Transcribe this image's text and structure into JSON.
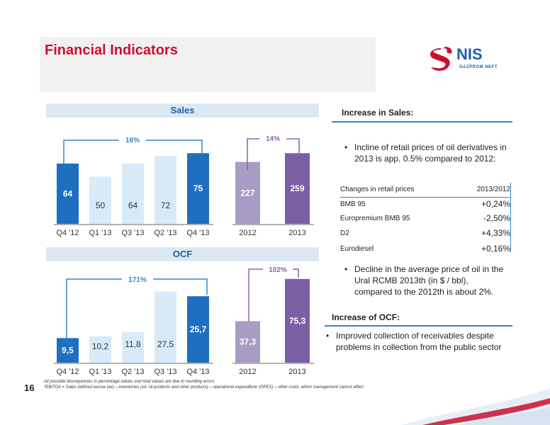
{
  "page": {
    "title": "Financial Indicators",
    "page_number": "16",
    "footnote_1": "All possible discrepancies in percentage values and total values are due to rounding errors",
    "footnote_2": "*EBITDA = Sales (without excise tax) – inventories (oil, oil products and other products) – operational expenditure (OPEX) – other costs, which management cannot affect"
  },
  "logo": {
    "text": "NIS",
    "subtext": "GAZPROM NEFT",
    "color": "#c8102e",
    "text_color": "#1f5fa8"
  },
  "colors": {
    "dark_blue": "#1f6fc0",
    "light_blue": "#d8eaf8",
    "purple_light": "#a99cc4",
    "purple_dark": "#7b5fa4",
    "accent_red": "#c8102e"
  },
  "sales": {
    "header": "Sales",
    "growth_quarterly": "16%",
    "growth_yearly": "14%"
  },
  "ocf": {
    "header": "OCF",
    "growth_quarterly": "171%",
    "growth_yearly": "102%"
  },
  "chart_data": [
    {
      "type": "bar",
      "categories": [
        "Q4 '12",
        "Q1 '13",
        "Q3 '13",
        "Q2 '13",
        "Q4 '13"
      ],
      "values": [
        64,
        50,
        64,
        72,
        75
      ],
      "value_labels": [
        "64",
        "50",
        "64",
        "72",
        "75"
      ],
      "highlight": [
        true,
        false,
        false,
        false,
        true
      ]
    },
    {
      "type": "bar",
      "categories": [
        "2012",
        "2013"
      ],
      "values": [
        227,
        259
      ],
      "value_labels": [
        "227",
        "259"
      ]
    },
    {
      "type": "bar",
      "categories": [
        "Q4 '12",
        "Q1 '13",
        "Q2 '13",
        "Q3 '13",
        "Q4 '13"
      ],
      "values": [
        9.5,
        10.2,
        11.8,
        27.5,
        25.7
      ],
      "value_labels": [
        "9,5",
        "10,2",
        "11,8",
        "27,5",
        "25,7"
      ],
      "highlight": [
        true,
        false,
        false,
        false,
        true
      ]
    },
    {
      "type": "bar",
      "categories": [
        "2012",
        "2013"
      ],
      "values": [
        37.3,
        75.3
      ],
      "value_labels": [
        "37,3",
        "75,3"
      ]
    }
  ],
  "right": {
    "sales_title": "Increase in Sales:",
    "bullet_1": "Incline of retail prices of oil derivatives in 2013 is app. 0.5% compared to 2012:",
    "table": {
      "header_left": "Changes in retail prices",
      "header_right": "2013/2012",
      "rows": [
        {
          "label": "BMB 95",
          "value": "+0,24%"
        },
        {
          "label": "Europremium BMB 95",
          "value": "-2,50%"
        },
        {
          "label": "D2",
          "value": "+4,33%"
        },
        {
          "label": "Eurodiesel",
          "value": "+0,16%"
        }
      ]
    },
    "bullet_2": "Decline in the average price of oil in the Ural RCMB 2013th (in $ / bbl), compared to the 2012th is about 2%.",
    "ocf_title": "Increase of OCF:",
    "bullet_3": "Improved collection of receivables despite problems in collection from the public sector"
  }
}
